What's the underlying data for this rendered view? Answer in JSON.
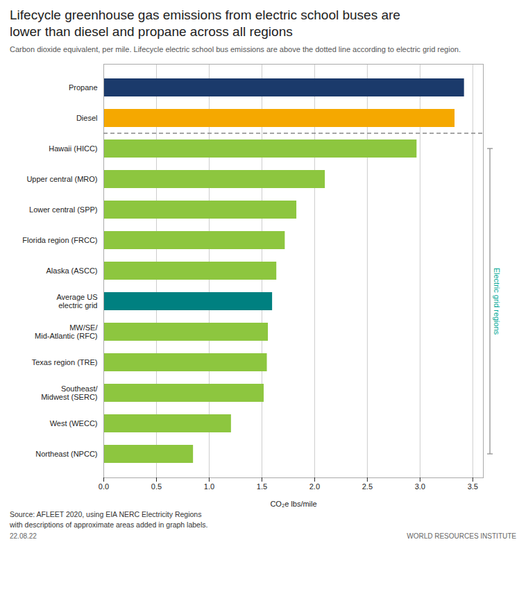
{
  "chart_data": {
    "type": "bar",
    "orientation": "horizontal",
    "title": "Lifecycle greenhouse gas emissions from electric school buses are\nlower than diesel and propane across all regions",
    "subtitle": "Carbon dioxide equivalent, per mile. Lifecycle electric school bus emissions are above the dotted line according to electric grid region.",
    "xlabel": "CO₂e lbs/mile",
    "categories": [
      "Northeast (NPCC)",
      "West (WECC)",
      "Southeast/\nMidwest (SERC)",
      "Texas region (TRE)",
      "MW/SE/\nMid-Atlantic (RFC)",
      "Average US\nelectric grid",
      "Alaska (ASCC)",
      "Florida region (FRCC)",
      "Lower central (SPP)",
      "Upper central (MRO)",
      "Hawaii (HICC)",
      "Diesel",
      "Propane"
    ],
    "values": [
      0.85,
      1.21,
      1.52,
      1.55,
      1.56,
      1.6,
      1.64,
      1.72,
      1.83,
      2.1,
      2.97,
      3.33,
      3.42
    ],
    "colors": [
      "#8DC63F",
      "#8DC63F",
      "#8DC63F",
      "#8DC63F",
      "#8DC63F",
      "#008080",
      "#8DC63F",
      "#8DC63F",
      "#8DC63F",
      "#8DC63F",
      "#8DC63F",
      "#F5A800",
      "#1B3A6B"
    ],
    "xlim": [
      0,
      3.6
    ],
    "xticks": [
      {
        "value": 0,
        "label": "0.0"
      },
      0.5,
      {
        "value": 1,
        "label": "1.0"
      },
      1.5,
      {
        "value": 2,
        "label": "2.0"
      },
      2.5,
      {
        "value": 3,
        "label": "3.0"
      },
      3.5
    ],
    "grid": true,
    "annotations": [
      {
        "text": "Electric grid regions",
        "color": "#00A896",
        "from": "Northeast (NPCC)",
        "to": "Hawaii (HICC)"
      },
      {
        "text": "22.08.22"
      },
      {
        "text": "WORLD RESOURCES INSTITUTE"
      }
    ],
    "caption": "Source: AFLEET 2020, using EIA NERC Electricity Regions\nwith descriptions of approximate areas added in graph labels."
  }
}
